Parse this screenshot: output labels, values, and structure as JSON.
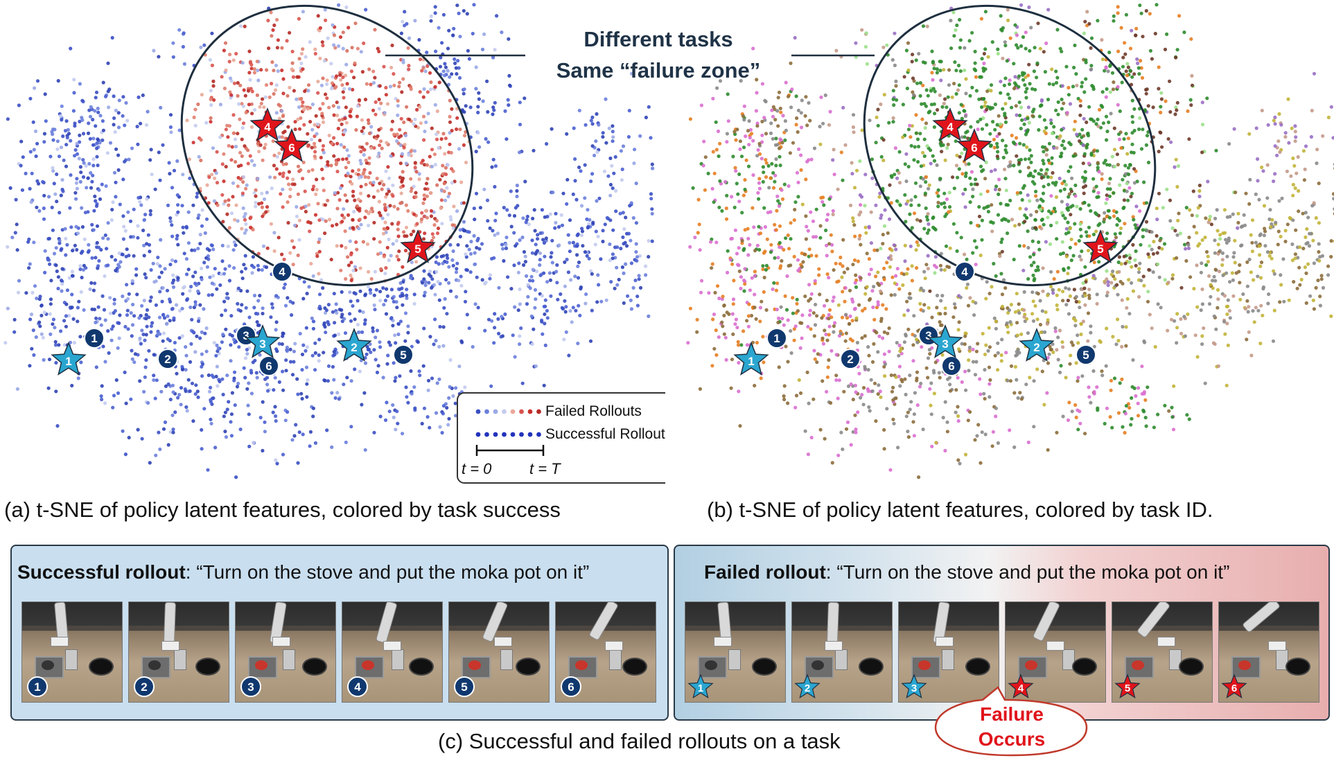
{
  "headline": {
    "line1": "Different tasks",
    "line2": "Same “failure zone”"
  },
  "legend": {
    "failed": "Failed Rollouts",
    "successful": "Successful Rollouts",
    "t_start": "t = 0",
    "t_end": "t = T"
  },
  "captions": {
    "a": "(a) t-SNE of policy latent features, colored by task success",
    "b": "(b) t-SNE of policy latent features, colored by task ID.",
    "c": "(c) Successful and failed rollouts on a task"
  },
  "panels": {
    "success": {
      "label": "Successful rollout",
      "quote": ": “Turn on the stove and put the moka pot on it”"
    },
    "failed": {
      "label": "Failed rollout",
      "quote": ": “Turn on the stove and put the moka pot on it”"
    }
  },
  "callout": {
    "line1": "Failure",
    "line2": "Occurs"
  },
  "markers": {
    "circle_labels": [
      "1",
      "2",
      "3",
      "4",
      "5",
      "6"
    ],
    "star_success_labels": [
      "1",
      "2",
      "3"
    ],
    "star_failure_labels": [
      "4",
      "5",
      "6"
    ]
  },
  "colors": {
    "success_blue": "#3a4fc4",
    "failed_red": "#c9302c",
    "circle_navy": "#10386e",
    "star_cyan": "#2aa6d0",
    "star_red": "#e0141b",
    "headline_text": "#1f3347",
    "callout_text": "#e0141b",
    "task_palette": [
      "#2e8b2e",
      "#e67e22",
      "#d96fcf",
      "#8c6d3b",
      "#8a8a8a",
      "#c2b43a",
      "#c49a8a",
      "#9a6fc4",
      "#9be08a",
      "#6e3b2a"
    ]
  },
  "frame_labels": {
    "success": [
      "1",
      "2",
      "3",
      "4",
      "5",
      "6"
    ],
    "failed": [
      "1",
      "2",
      "3",
      "4",
      "5",
      "6"
    ]
  }
}
